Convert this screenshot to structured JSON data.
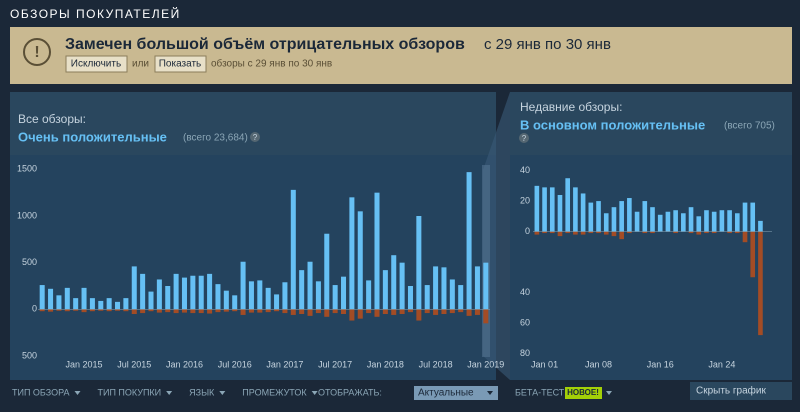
{
  "section_title": "ОБЗОРЫ ПОКУПАТЕЛЕЙ",
  "banner": {
    "icon": "!",
    "title": "Замечен большой объём отрицательных обзоров",
    "title_suffix": "с 29 янв по 30 янв",
    "exclude": "Исключить",
    "or": "или",
    "show": "Показать",
    "note": "обзоры с 29 янв по 30 янв"
  },
  "panels": [
    {
      "label": "Все обзоры:",
      "rating": "Очень положительные",
      "count": "(всего 23,684)",
      "help": "?"
    },
    {
      "label": "Недавние обзоры:",
      "rating": "В основном положительные",
      "count": "(всего 705)",
      "help": "?"
    }
  ],
  "chart_data": [
    {
      "type": "bar",
      "categories": [
        null,
        null,
        null,
        null,
        null,
        "Jan 2015",
        null,
        null,
        null,
        null,
        null,
        "Jul 2015",
        null,
        null,
        null,
        null,
        null,
        "Jan 2016",
        null,
        null,
        null,
        null,
        null,
        "Jul 2016",
        null,
        null,
        null,
        null,
        null,
        "Jan 2017",
        null,
        null,
        null,
        null,
        null,
        "Jul 2017",
        null,
        null,
        null,
        null,
        null,
        "Jan 2018",
        null,
        null,
        null,
        null,
        null,
        "Jul 2018",
        null,
        null,
        null,
        null,
        null,
        "Jan 2019"
      ],
      "series": [
        {
          "color": "#66c0f4",
          "values": [
            260,
            220,
            150,
            230,
            120,
            230,
            120,
            90,
            120,
            80,
            120,
            460,
            380,
            190,
            320,
            250,
            380,
            340,
            360,
            360,
            380,
            270,
            200,
            150,
            510,
            300,
            310,
            230,
            160,
            290,
            1280,
            420,
            510,
            300,
            810,
            260,
            350,
            1200,
            1050,
            310,
            1250,
            420,
            580,
            500,
            250,
            1000,
            260,
            460,
            450,
            320,
            260,
            1470,
            460,
            500
          ]
        },
        {
          "color": "#a34c25",
          "values": [
            -20,
            -25,
            -15,
            -20,
            -15,
            -30,
            -20,
            -15,
            -20,
            -15,
            -20,
            -50,
            -40,
            -20,
            -35,
            -30,
            -40,
            -35,
            -40,
            -40,
            -45,
            -30,
            -25,
            -20,
            -60,
            -35,
            -35,
            -30,
            -20,
            -40,
            -60,
            -50,
            -70,
            -40,
            -80,
            -40,
            -50,
            -120,
            -100,
            -40,
            -80,
            -50,
            -60,
            -50,
            -30,
            -120,
            -40,
            -60,
            -50,
            -40,
            -30,
            -70,
            -60,
            -150
          ]
        }
      ],
      "ylim": [
        -650,
        1600
      ],
      "yticks": [
        {
          "value": -500,
          "label": "500"
        },
        0,
        500,
        1000,
        1500
      ]
    },
    {
      "type": "bar",
      "categories": [
        null,
        "Jan 01",
        null,
        null,
        null,
        null,
        null,
        null,
        "Jan 08",
        null,
        null,
        null,
        null,
        null,
        null,
        null,
        "Jan 16",
        null,
        null,
        null,
        null,
        null,
        null,
        null,
        "Jan 24",
        null,
        null,
        null,
        null,
        null,
        null
      ],
      "series": [
        {
          "color": "#66c0f4",
          "values": [
            30,
            29,
            29,
            24,
            35,
            29,
            25,
            19,
            20,
            12,
            16,
            20,
            22,
            13,
            20,
            16,
            11,
            13,
            14,
            12,
            16,
            10,
            14,
            13,
            14,
            14,
            12,
            19,
            19,
            7,
            0
          ]
        },
        {
          "color": "#a34c25",
          "values": [
            -2,
            -1,
            -1,
            -3,
            -1,
            -2,
            -2,
            -1,
            -1,
            -2,
            -3,
            -5,
            -1,
            0,
            -1,
            -1,
            0,
            0,
            -1,
            0,
            -1,
            -2,
            -1,
            -1,
            0,
            -1,
            -1,
            -7,
            -30,
            -68,
            0
          ]
        }
      ],
      "ylim": [
        -85,
        45
      ],
      "yticks": [
        40,
        20,
        0,
        {
          "value": -40,
          "label": "40"
        },
        {
          "value": -60,
          "label": "60"
        },
        {
          "value": -80,
          "label": "80"
        }
      ]
    }
  ],
  "filters": [
    "ТИП ОБЗОРА",
    "ТИП ПОКУПКИ",
    "ЯЗЫК",
    "ПРОМЕЖУТОК"
  ],
  "display_label": "ОТОБРАЖАТЬ:",
  "display_value": "Актуальные",
  "beta": "БЕТА-ТЕСТ",
  "new": "НОВОЕ!",
  "hide": "Скрыть график"
}
